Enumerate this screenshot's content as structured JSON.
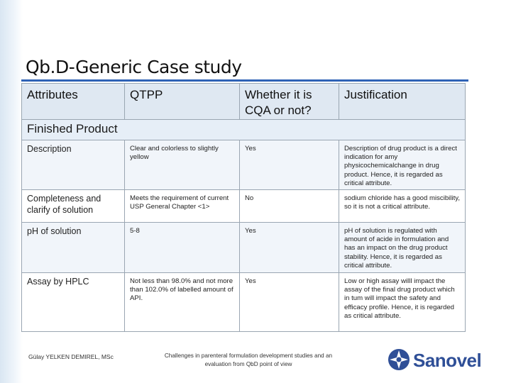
{
  "slide": {
    "title": "Qb.D-Generic Case study",
    "accent_color": "#2f63b6",
    "logo_color": "#2f4f97"
  },
  "table": {
    "headers": [
      "Attributes",
      "QTPP",
      "Whether it is CQA or not?",
      "Justification"
    ],
    "section": "Finished Product",
    "rows": [
      {
        "attribute": "Description",
        "qtpp": "Clear and colorless to slightly yellow",
        "cqa": "Yes",
        "justification": "Description of drug product is a direct indication for amy physicochemicalchange in drug product. Hence, it is regarded as critical attribute."
      },
      {
        "attribute": "Completeness and clarify of solution",
        "qtpp": "Meets the requirement of current USP General Chapter <1>",
        "cqa": "No",
        "justification": "sodium chloride has a good miscibility, so it is not a critical attribute."
      },
      {
        "attribute": "pH of solution",
        "qtpp": "5-8",
        "cqa": "Yes",
        "justification": "pH of solution is regulated with amount of acide in formulation and has an impact on the drug product stability. Hence, it is regarded as critical attribute."
      },
      {
        "attribute": "Assay by HPLC",
        "qtpp": "Not less than 98.0% and not more than 102.0% of labelled amount of API.",
        "cqa": "Yes",
        "justification": "Low or high assay willl impact the assay of the final drug product which in tum will impact the safety and efficacy profile. Hence, it is regarded as critical attribute."
      }
    ]
  },
  "footer": {
    "author": "Gülay YELKEN DEMIREL, MSc",
    "caption": "Challenges in parenteral formulation development studies and an evaluation from QbD point of view",
    "logo_text": "Sanovel"
  }
}
